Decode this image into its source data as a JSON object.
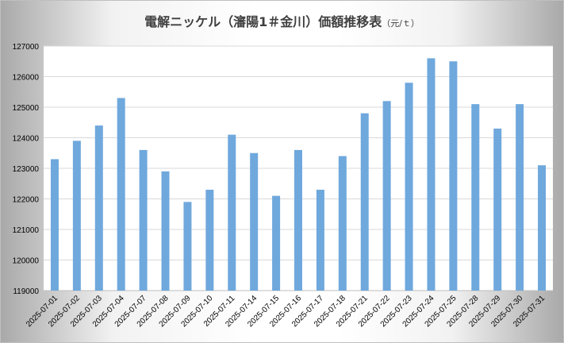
{
  "chart_data": {
    "type": "bar",
    "title": "電解ニッケル（瀋陽1＃金川）価額推移表",
    "title_unit": "（元/ｔ）",
    "xlabel": "",
    "ylabel": "",
    "ylim": [
      119000,
      127000
    ],
    "yticks": [
      119000,
      120000,
      121000,
      122000,
      123000,
      124000,
      125000,
      126000,
      127000
    ],
    "grid": true,
    "bar_color": "#6fa8dc",
    "categories": [
      "2025-07-01",
      "2025-07-02",
      "2025-07-03",
      "2025-07-04",
      "2025-07-07",
      "2025-07-08",
      "2025-07-09",
      "2025-07-10",
      "2025-07-11",
      "2025-07-14",
      "2025-07-15",
      "2025-07-16",
      "2025-07-17",
      "2025-07-18",
      "2025-07-21",
      "2025-07-22",
      "2025-07-23",
      "2025-07-24",
      "2025-07-25",
      "2025-07-28",
      "2025-07-29",
      "2025-07-30",
      "2025-07-31"
    ],
    "values": [
      123300,
      123900,
      124400,
      125300,
      123600,
      122900,
      121900,
      122300,
      124100,
      123500,
      122100,
      123600,
      122300,
      123400,
      124800,
      125200,
      125800,
      126600,
      126500,
      125100,
      124300,
      125100,
      123100
    ]
  }
}
